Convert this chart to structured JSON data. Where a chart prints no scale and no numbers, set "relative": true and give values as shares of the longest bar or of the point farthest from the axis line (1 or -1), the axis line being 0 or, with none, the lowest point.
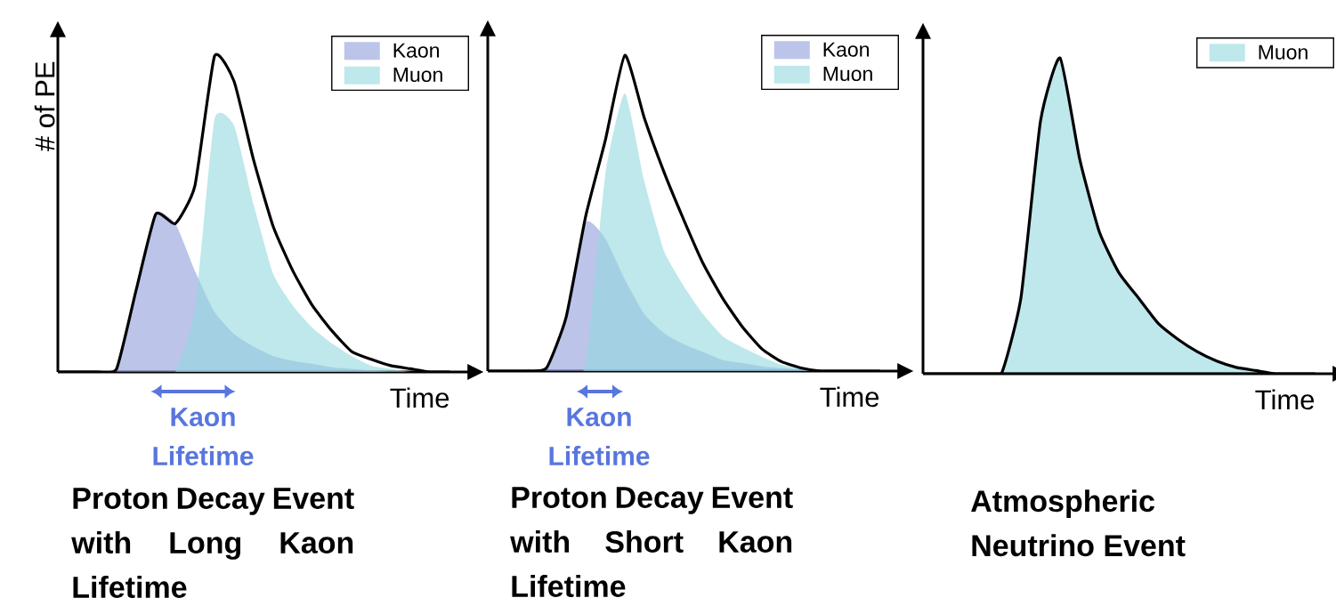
{
  "chart_data": [
    {
      "type": "area",
      "relative": true,
      "title": "Proton Decay Event with Long Kaon Lifetime",
      "xlabel": "Time",
      "ylabel": "# of PE",
      "legend": "top right",
      "annotations": [
        "Kaon Lifetime"
      ],
      "categories": [
        null,
        null,
        null,
        null,
        null,
        null,
        null,
        null,
        null,
        null,
        null,
        null,
        null,
        null,
        null,
        null,
        null,
        null,
        null,
        null,
        null
      ],
      "series": [
        {
          "name": "Kaon",
          "color": "#bcc4ea",
          "values": [
            0,
            0,
            0,
            0.01,
            0.25,
            0.5,
            0.47,
            0.32,
            0.19,
            0.12,
            0.08,
            0.05,
            0.035,
            0.025,
            0.015,
            0.01,
            0.005,
            0,
            0,
            0,
            0
          ]
        },
        {
          "name": "Muon",
          "color": "#bee8eb",
          "values": [
            0,
            0,
            0,
            0,
            0,
            0,
            0,
            0.2,
            0.8,
            0.78,
            0.53,
            0.31,
            0.21,
            0.14,
            0.09,
            0.05,
            0.02,
            0.01,
            0,
            0,
            0
          ]
        },
        {
          "type": "line",
          "color": "#000000",
          "values": [
            0,
            0,
            0,
            0.01,
            0.26,
            0.5,
            0.47,
            0.59,
            1,
            0.92,
            0.67,
            0.46,
            0.32,
            0.21,
            0.13,
            0.065,
            0.04,
            0.02,
            0.01,
            0,
            0
          ]
        }
      ]
    },
    {
      "type": "area",
      "relative": true,
      "title": "Proton Decay Event with Short Kaon Lifetime",
      "xlabel": "Time",
      "legend": "top right",
      "annotations": [
        "Kaon Lifetime"
      ],
      "categories": [
        null,
        null,
        null,
        null,
        null,
        null,
        null,
        null,
        null,
        null,
        null,
        null,
        null,
        null,
        null,
        null,
        null,
        null,
        null,
        null,
        null
      ],
      "series": [
        {
          "name": "Kaon",
          "color": "#bcc4ea",
          "values": [
            0,
            0,
            0,
            0.01,
            0.17,
            0.47,
            0.42,
            0.29,
            0.18,
            0.12,
            0.085,
            0.06,
            0.035,
            0.025,
            0.015,
            0.01,
            0.005,
            0,
            0,
            0,
            0
          ]
        },
        {
          "name": "Muon",
          "color": "#bee8eb",
          "values": [
            0,
            0,
            0,
            0,
            0,
            0.02,
            0.62,
            0.88,
            0.6,
            0.38,
            0.27,
            0.18,
            0.11,
            0.075,
            0.045,
            0.02,
            0.01,
            0,
            0,
            0,
            0
          ]
        },
        {
          "type": "line",
          "color": "#000000",
          "values": [
            0,
            0,
            0,
            0.01,
            0.17,
            0.49,
            0.73,
            1,
            0.8,
            0.63,
            0.48,
            0.34,
            0.23,
            0.14,
            0.07,
            0.03,
            0.01,
            0,
            0,
            0,
            0
          ]
        }
      ]
    },
    {
      "type": "area",
      "relative": true,
      "title": "Atmospheric Neutrino Event",
      "xlabel": "Time",
      "legend": "top right",
      "categories": [
        null,
        null,
        null,
        null,
        null,
        null,
        null,
        null,
        null,
        null,
        null,
        null,
        null,
        null,
        null,
        null,
        null,
        null,
        null,
        null,
        null
      ],
      "series": [
        {
          "name": "Muon",
          "color": "#bee8eb",
          "line_style": "solid",
          "values": [
            0,
            0,
            0,
            0,
            0,
            0.24,
            0.8,
            1,
            0.68,
            0.45,
            0.32,
            0.24,
            0.16,
            0.11,
            0.07,
            0.04,
            0.02,
            0.01,
            0,
            0,
            0
          ]
        }
      ]
    }
  ]
}
